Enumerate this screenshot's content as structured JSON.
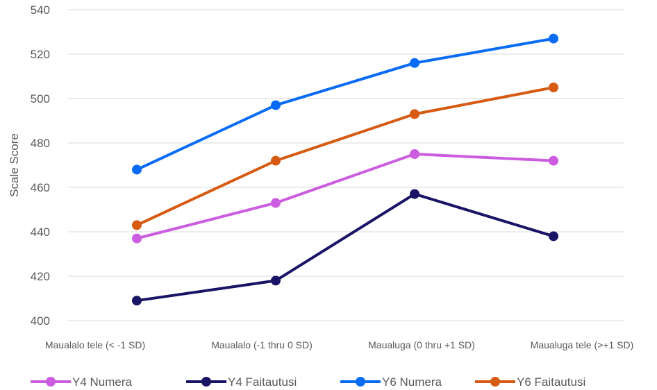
{
  "chart_data": {
    "type": "line",
    "ylabel": "Scale Score",
    "xlabel": "",
    "ylim": [
      400,
      540
    ],
    "yticks": [
      400,
      420,
      440,
      460,
      480,
      500,
      520,
      540
    ],
    "grid": true,
    "legend_position": "bottom",
    "categories": [
      "Maualalo tele (< -1 SD)",
      "Maualalo (-1 thru 0 SD)",
      "Maualuga (0 thru +1 SD)",
      "Maualuga tele (>+1 SD)"
    ],
    "series": [
      {
        "name": "Y4 Numera",
        "color": "#cc5ce0",
        "values": [
          437,
          453,
          475,
          472
        ]
      },
      {
        "name": "Y4 Faitautusi",
        "color": "#1a1466",
        "values": [
          409,
          418,
          457,
          438
        ]
      },
      {
        "name": "Y6 Numera",
        "color": "#0a6cf5",
        "values": [
          468,
          497,
          516,
          527
        ]
      },
      {
        "name": "Y6 Faitautusi",
        "color": "#d65a12",
        "values": [
          443,
          472,
          493,
          505
        ]
      }
    ]
  }
}
